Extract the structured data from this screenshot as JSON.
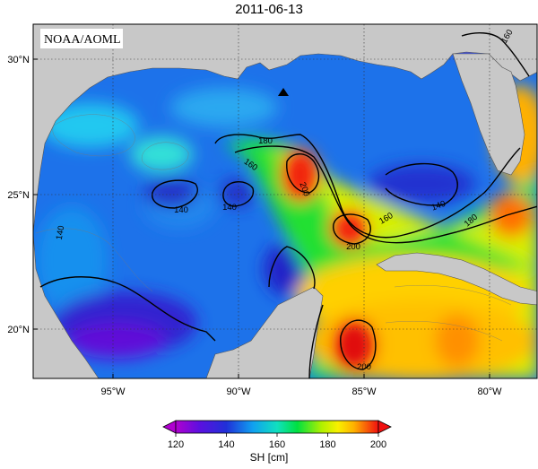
{
  "title": "2011-06-13",
  "source_label": "NOAA/AOML",
  "lat_labels": [
    "30°N",
    "25°N",
    "20°N"
  ],
  "lon_labels": [
    "95°W",
    "90°W",
    "85°W",
    "80°W"
  ],
  "contour_labels": {
    "c140_a": "140",
    "c140_b": "140",
    "c140_c": "140",
    "c140_d": "140",
    "c160_a": "160",
    "c160_b": "160",
    "c160_c": "160",
    "c180_a": "180",
    "c180_b": "180",
    "c200_a": "200",
    "c200_b": "200",
    "c200_c": "200"
  },
  "colorbar": {
    "title": "SH [cm]",
    "ticks": [
      "120",
      "140",
      "160",
      "180",
      "200"
    ],
    "colors": [
      "#b000d0",
      "#6a00e0",
      "#2020d8",
      "#1060f0",
      "#10b8f0",
      "#10e0c0",
      "#00e040",
      "#a0ec00",
      "#f0f000",
      "#ffc000",
      "#ff7000",
      "#f01010"
    ]
  },
  "colors": {
    "land": "#c8c8c8",
    "gulf_bg": "#1a70e8",
    "marker": "#000000"
  }
}
